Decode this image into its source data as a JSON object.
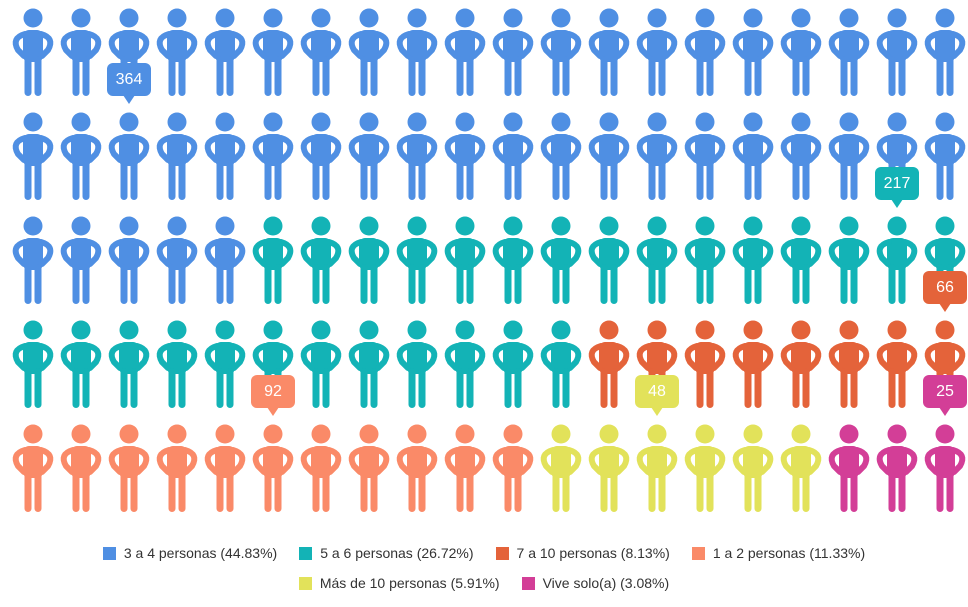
{
  "chart_data": {
    "type": "pictorial",
    "series": [
      {
        "name": "3 a 4 personas (44.83%)",
        "color": "#4f8fe3",
        "values": [
          364
        ]
      },
      {
        "name": "5 a 6 personas (26.72%)",
        "color": "#13b3b6",
        "values": [
          217
        ]
      },
      {
        "name": "7 a 10 personas (8.13%)",
        "color": "#e4633a",
        "values": [
          66
        ]
      },
      {
        "name": "1 a 2 personas (11.33%)",
        "color": "#fa8a68",
        "values": [
          92
        ]
      },
      {
        "name": "Más de 10 personas (5.91%)",
        "color": "#e2e25a",
        "values": [
          48
        ]
      },
      {
        "name": "Vive solo(a) (3.08%)",
        "color": "#d33e97",
        "values": [
          25
        ]
      }
    ]
  }
}
